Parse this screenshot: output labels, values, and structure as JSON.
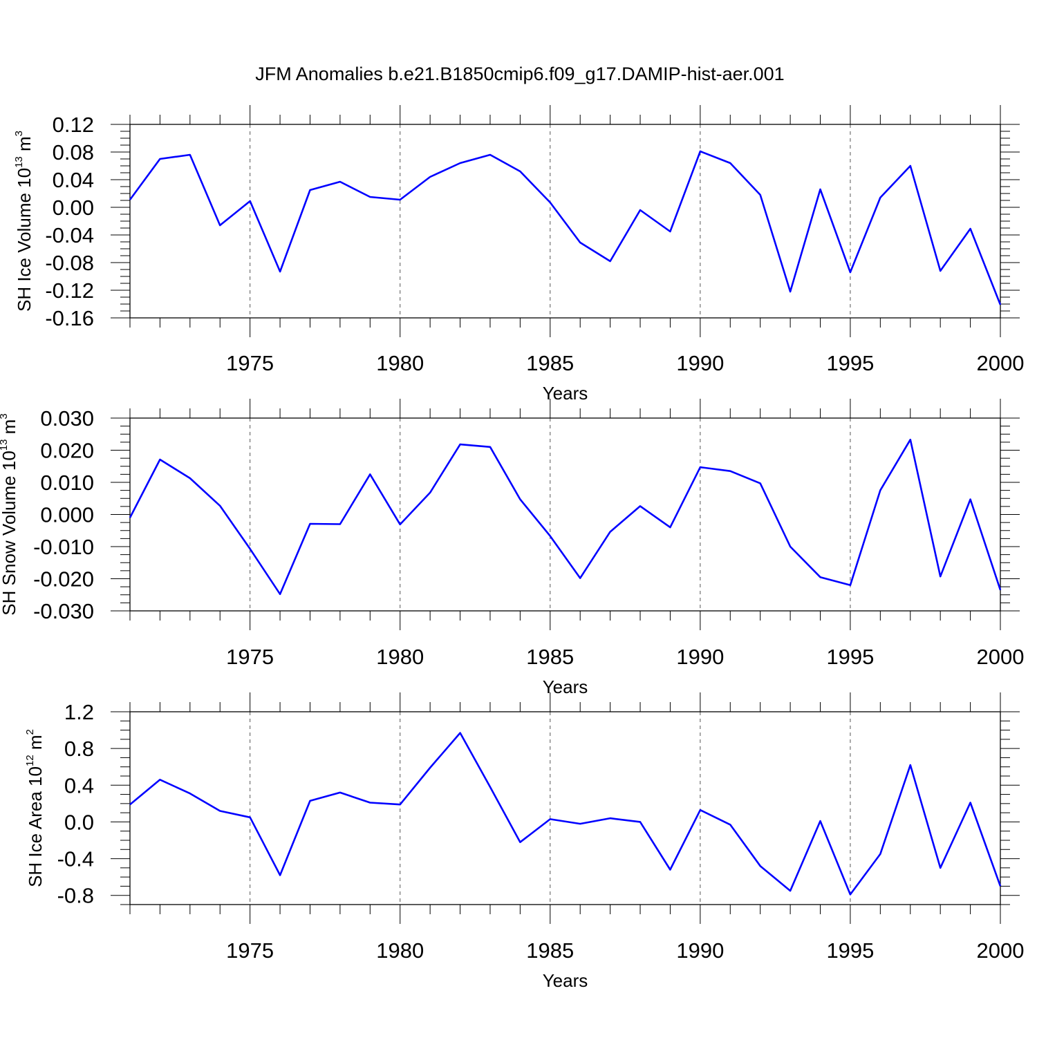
{
  "title": "JFM Anomalies b.e21.B1850cmip6.f09_g17.DAMIP-hist-aer.001",
  "colors": {
    "line": "#0000ff",
    "axis": "#000000",
    "grid": "#555555"
  },
  "chart_data": [
    {
      "type": "line",
      "ylabel": "SH Ice Volume 10",
      "ylabel_exp": "13",
      "ylabel_unit": " m",
      "ylabel_unit_exp": "3",
      "xlabel": "Years",
      "xlim": [
        1971,
        2000
      ],
      "ylim": [
        -0.16,
        0.12
      ],
      "yticks": [
        0.12,
        0.08,
        0.04,
        0.0,
        -0.04,
        -0.08,
        -0.12,
        -0.16
      ],
      "yticklabels": [
        "0.12",
        "0.08",
        "0.04",
        "0.00",
        "-0.04",
        "-0.08",
        "-0.12",
        "-0.16"
      ],
      "xticks": [
        1975,
        1980,
        1985,
        1990,
        1995,
        2000
      ],
      "xticklabels": [
        "1975",
        "1980",
        "1985",
        "1990",
        "1995",
        "2000"
      ],
      "grid": "vertical dashed at major x ticks",
      "series": [
        {
          "x": [
            1971,
            1972,
            1973,
            1974,
            1975,
            1976,
            1977,
            1978,
            1979,
            1980,
            1981,
            1982,
            1983,
            1984,
            1985,
            1986,
            1987,
            1988,
            1989,
            1990,
            1991,
            1992,
            1993,
            1994,
            1995,
            1996,
            1997,
            1998,
            1999,
            2000
          ],
          "values": [
            0.011,
            0.07,
            0.076,
            -0.026,
            0.009,
            -0.093,
            0.025,
            0.037,
            0.015,
            0.011,
            0.044,
            0.064,
            0.076,
            0.052,
            0.007,
            -0.051,
            -0.078,
            -0.004,
            -0.035,
            0.081,
            0.064,
            0.018,
            -0.122,
            0.026,
            -0.094,
            0.014,
            0.06,
            -0.092,
            -0.031,
            -0.141
          ]
        }
      ]
    },
    {
      "type": "line",
      "ylabel": "SH Snow Volume 10",
      "ylabel_exp": "13",
      "ylabel_unit": " m",
      "ylabel_unit_exp": "3",
      "xlabel": "Years",
      "xlim": [
        1971,
        2000
      ],
      "ylim": [
        -0.03,
        0.03
      ],
      "yticks": [
        0.03,
        0.02,
        0.01,
        0.0,
        -0.01,
        -0.02,
        -0.03
      ],
      "yticklabels": [
        "0.030",
        "0.020",
        "0.010",
        "0.000",
        "-0.010",
        "-0.020",
        "-0.030"
      ],
      "xticks": [
        1975,
        1980,
        1985,
        1990,
        1995,
        2000
      ],
      "xticklabels": [
        "1975",
        "1980",
        "1985",
        "1990",
        "1995",
        "2000"
      ],
      "grid": "vertical dashed at major x ticks",
      "series": [
        {
          "x": [
            1971,
            1972,
            1973,
            1974,
            1975,
            1976,
            1977,
            1978,
            1979,
            1980,
            1981,
            1982,
            1983,
            1984,
            1985,
            1986,
            1987,
            1988,
            1989,
            1990,
            1991,
            1992,
            1993,
            1994,
            1995,
            1996,
            1997,
            1998,
            1999,
            2000
          ],
          "values": [
            -0.001,
            0.0171,
            0.0113,
            0.0027,
            -0.0107,
            -0.0248,
            -0.0029,
            -0.003,
            0.0125,
            -0.0031,
            0.0068,
            0.0218,
            0.021,
            0.0047,
            -0.0067,
            -0.0198,
            -0.0054,
            0.0026,
            -0.004,
            0.0147,
            0.0135,
            0.0097,
            -0.01,
            -0.0195,
            -0.022,
            0.0075,
            0.0233,
            -0.0193,
            0.0047,
            -0.0235
          ]
        }
      ]
    },
    {
      "type": "line",
      "ylabel": "SH Ice Area 10",
      "ylabel_exp": "12",
      "ylabel_unit": " m",
      "ylabel_unit_exp": "2",
      "xlabel": "Years",
      "xlim": [
        1971,
        2000
      ],
      "ylim": [
        -0.9,
        1.2
      ],
      "yticks": [
        1.2,
        0.8,
        0.4,
        0.0,
        -0.4,
        -0.8
      ],
      "yticklabels": [
        "1.2",
        "0.8",
        "0.4",
        "0.0",
        "-0.4",
        "-0.8"
      ],
      "xticks": [
        1975,
        1980,
        1985,
        1990,
        1995,
        2000
      ],
      "xticklabels": [
        "1975",
        "1980",
        "1985",
        "1990",
        "1995",
        "2000"
      ],
      "grid": "vertical dashed at major x ticks",
      "series": [
        {
          "x": [
            1971,
            1972,
            1973,
            1974,
            1975,
            1976,
            1977,
            1978,
            1979,
            1980,
            1981,
            1982,
            1983,
            1984,
            1985,
            1986,
            1987,
            1988,
            1989,
            1990,
            1991,
            1992,
            1993,
            1994,
            1995,
            1996,
            1997,
            1998,
            1999,
            2000
          ],
          "values": [
            0.19,
            0.46,
            0.31,
            0.12,
            0.05,
            -0.58,
            0.23,
            0.32,
            0.21,
            0.19,
            0.59,
            0.97,
            0.38,
            -0.22,
            0.03,
            -0.02,
            0.04,
            0.0,
            -0.52,
            0.13,
            -0.03,
            -0.48,
            -0.75,
            0.01,
            -0.79,
            -0.35,
            0.62,
            -0.5,
            0.21,
            -0.7
          ]
        }
      ]
    }
  ]
}
